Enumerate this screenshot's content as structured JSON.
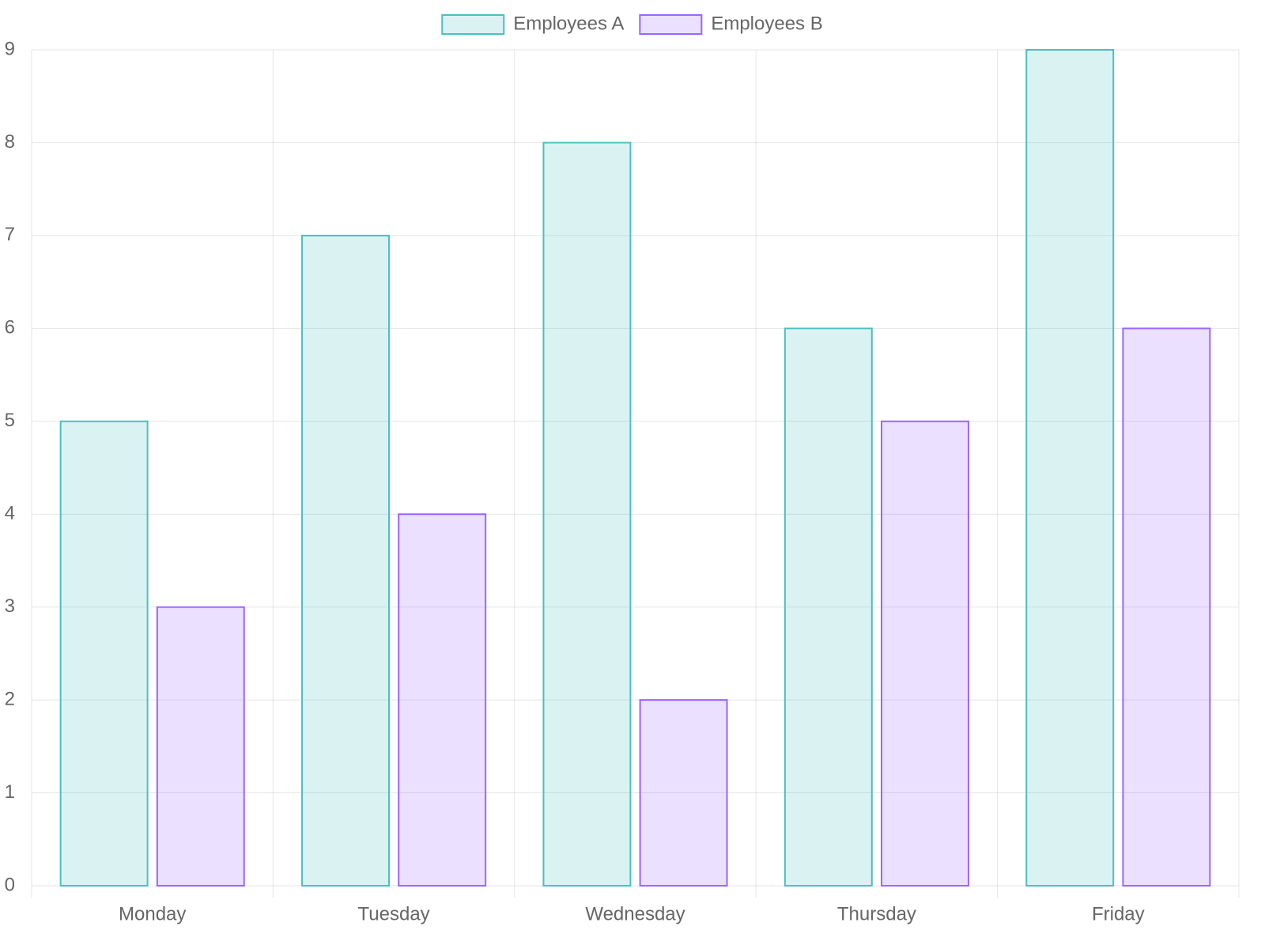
{
  "chart_data": {
    "type": "bar",
    "categories": [
      "Monday",
      "Tuesday",
      "Wednesday",
      "Thursday",
      "Friday"
    ],
    "series": [
      {
        "name": "Employees A",
        "color": "#4bc0c0",
        "values": [
          5,
          7,
          8,
          6,
          9
        ]
      },
      {
        "name": "Employees B",
        "color": "#9966ff",
        "values": [
          3,
          4,
          2,
          5,
          6
        ]
      }
    ],
    "ylim": [
      0,
      9
    ],
    "yticks": [
      0,
      1,
      2,
      3,
      4,
      5,
      6,
      7,
      8,
      9
    ],
    "grid": true,
    "legend": "top"
  }
}
